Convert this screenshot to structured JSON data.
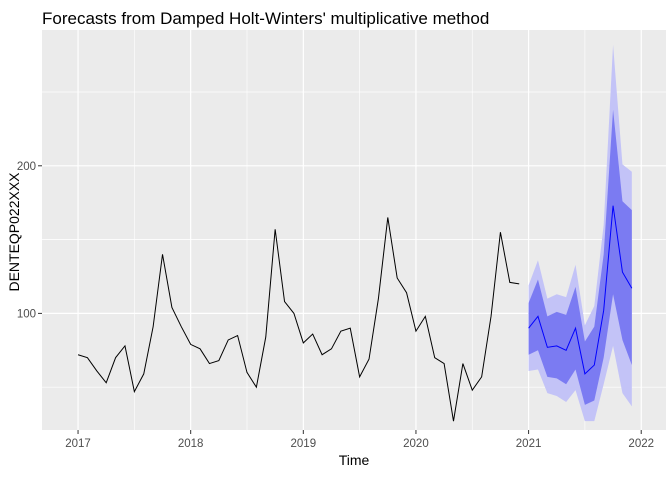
{
  "chart_data": {
    "type": "line",
    "title": "Forecasts from Damped Holt-Winters' multiplicative method",
    "xlabel": "Time",
    "ylabel": "DENTEQP022XXX",
    "x_ticks": [
      "2017",
      "2018",
      "2019",
      "2020",
      "2021",
      "2022"
    ],
    "y_ticks": [
      "100",
      "200"
    ],
    "xlim": [
      2016.68,
      2022.22
    ],
    "ylim": [
      21,
      292
    ],
    "grid": true,
    "legend": "none",
    "colors": {
      "history": "#000000",
      "forecast": "#0000ff",
      "band80": "#7b7bf2",
      "band95": "#c3c3f7",
      "panel": "#ebebeb",
      "gridline": "#ffffff"
    },
    "history": {
      "start": 2017.0,
      "step": 0.083333,
      "values": [
        72,
        70,
        61,
        53,
        70,
        78,
        47,
        59,
        91,
        140,
        104,
        91,
        79,
        76,
        66,
        68,
        82,
        85,
        60,
        50,
        84,
        157,
        108,
        100,
        80,
        86,
        72,
        76,
        88,
        90,
        57,
        69,
        110,
        165,
        124,
        114,
        88,
        98,
        70,
        66,
        27,
        66,
        48,
        57,
        98,
        155,
        121,
        120
      ]
    },
    "forecast": {
      "start": 2021.0,
      "step": 0.083333,
      "mean": [
        90,
        98,
        77,
        78,
        75,
        90,
        59,
        65,
        102,
        173,
        128,
        117
      ],
      "lo80": [
        72,
        75,
        57,
        56,
        52,
        62,
        38,
        41,
        70,
        113,
        82,
        65
      ],
      "hi80": [
        107,
        123,
        98,
        101,
        99,
        118,
        81,
        91,
        140,
        238,
        176,
        170
      ],
      "lo95": [
        61,
        62,
        46,
        44,
        40,
        48,
        27,
        27,
        52,
        78,
        46,
        37
      ],
      "hi95": [
        119,
        136,
        110,
        113,
        111,
        133,
        92,
        105,
        160,
        282,
        201,
        196
      ]
    }
  }
}
